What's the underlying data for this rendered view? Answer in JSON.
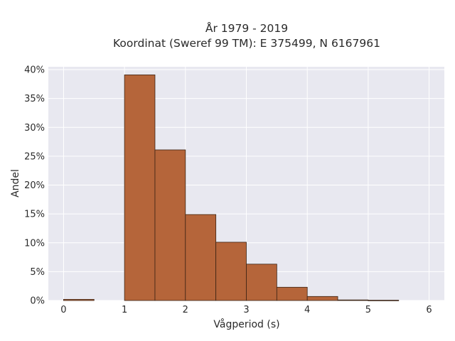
{
  "chart_data": {
    "type": "bar",
    "title_line1": "År 1979 - 2019",
    "title_line2": "Koordinat (Sweref 99 TM): E 375499, N 6167961",
    "xlabel": "Vågperiod (s)",
    "ylabel": "Andel",
    "bar_color": "#b5653a",
    "edge_color": "#3b2314",
    "plot_bg": "#e8e8f0",
    "grid": true,
    "xlim": [
      -0.25,
      6.25
    ],
    "ylim": [
      0,
      40.5
    ],
    "x_ticks": [
      0,
      1,
      2,
      3,
      4,
      5,
      6
    ],
    "x_tick_labels": [
      "0",
      "1",
      "2",
      "3",
      "4",
      "5",
      "6"
    ],
    "y_ticks": [
      0,
      5,
      10,
      15,
      20,
      25,
      30,
      35,
      40
    ],
    "y_tick_labels": [
      "0%",
      "5%",
      "10%",
      "15%",
      "20%",
      "25%",
      "30%",
      "35%",
      "40%"
    ],
    "bins": [
      {
        "x0": 0.0,
        "x1": 0.5,
        "value": 0.2
      },
      {
        "x0": 0.5,
        "x1": 1.0,
        "value": 0
      },
      {
        "x0": 1.0,
        "x1": 1.5,
        "value": 39.1
      },
      {
        "x0": 1.5,
        "x1": 2.0,
        "value": 26.1
      },
      {
        "x0": 2.0,
        "x1": 2.5,
        "value": 14.9
      },
      {
        "x0": 2.5,
        "x1": 3.0,
        "value": 10.1
      },
      {
        "x0": 3.0,
        "x1": 3.5,
        "value": 6.3
      },
      {
        "x0": 3.5,
        "x1": 4.0,
        "value": 2.3
      },
      {
        "x0": 4.0,
        "x1": 4.5,
        "value": 0.7
      },
      {
        "x0": 4.5,
        "x1": 5.0,
        "value": 0.1
      },
      {
        "x0": 5.0,
        "x1": 5.5,
        "value": 0.05
      }
    ]
  }
}
